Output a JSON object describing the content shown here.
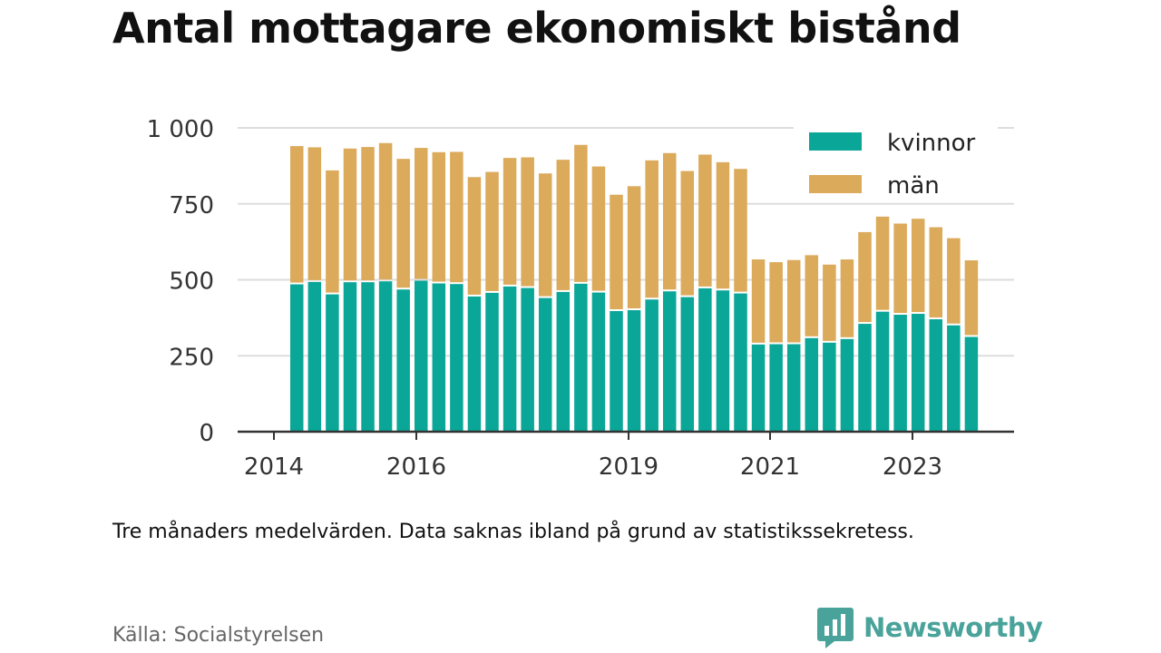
{
  "title": "Antal mottagare ekonomiskt bistånd",
  "note": "Tre månaders medelvärden. Data saknas ibland på grund av statistikssekretess.",
  "source": "Källa: Socialstyrelsen",
  "logo": {
    "text": "Newsworthy",
    "icon": "newsworthy-chart-icon"
  },
  "colors": {
    "kvinnor": "#0aa697",
    "man": "#dbaa5a",
    "axis": "#333333",
    "grid": "#dddddd",
    "brand": "#4aa39a"
  },
  "chart_data": {
    "type": "bar",
    "stacked": true,
    "title": "Antal mottagare ekonomiskt bistånd",
    "xlabel": "",
    "ylabel": "",
    "ylim": [
      0,
      1000
    ],
    "yticks": [
      0,
      250,
      500,
      750,
      1000
    ],
    "ytick_labels": [
      "0",
      "250",
      "500",
      "750",
      "1 000"
    ],
    "xtick_labels": [
      "2014",
      "2016",
      "2019",
      "2021",
      "2023"
    ],
    "grid": true,
    "legend_position": "top-right",
    "series": [
      {
        "name": "kvinnor",
        "values": [
          485,
          493,
          452,
          492,
          492,
          495,
          468,
          497,
          488,
          486,
          445,
          457,
          478,
          473,
          440,
          460,
          487,
          458,
          397,
          400,
          435,
          462,
          443,
          472,
          465,
          455,
          287,
          288,
          288,
          308,
          293,
          305,
          355,
          395,
          385,
          388,
          370,
          350,
          312
        ]
      },
      {
        "name": "män",
        "values": [
          455,
          443,
          408,
          440,
          445,
          455,
          430,
          437,
          432,
          435,
          393,
          398,
          423,
          430,
          410,
          435,
          457,
          415,
          383,
          408,
          458,
          455,
          415,
          440,
          422,
          410,
          280,
          270,
          277,
          273,
          257,
          262,
          302,
          313,
          300,
          313,
          303,
          287,
          252
        ]
      }
    ]
  }
}
